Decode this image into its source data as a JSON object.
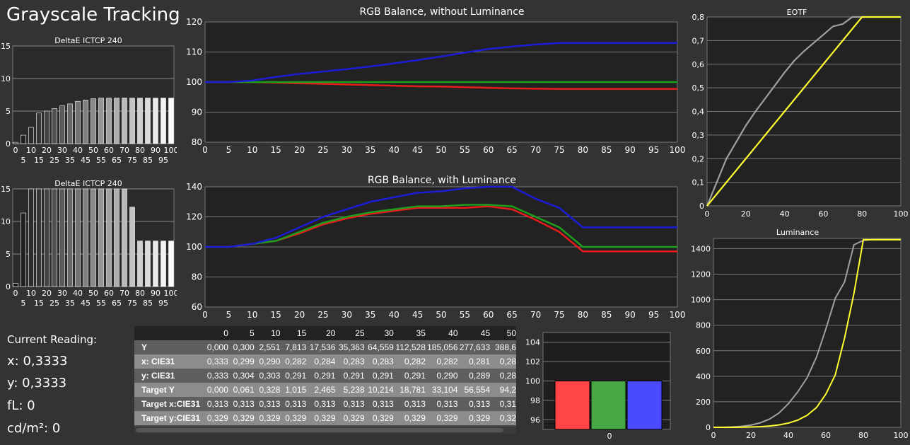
{
  "page": {
    "title": "Grayscale Tracking"
  },
  "current_reading": {
    "heading": "Current Reading:",
    "x": "x: 0,3333",
    "y": "y: 0,3333",
    "fl": "fL: 0",
    "cdm2": "cd/m²: 0"
  },
  "colors": {
    "red": "#e81c1c",
    "green": "#1d9e1d",
    "blue": "#1c1cd6",
    "gray": "#a0a0a0",
    "yellow": "#ffff30"
  },
  "table": {
    "columns": [
      "0",
      "5",
      "10",
      "15",
      "20",
      "25",
      "30",
      "35",
      "40",
      "45",
      "50"
    ],
    "rows": [
      {
        "label": "Y",
        "values": [
          "0,000",
          "0,300",
          "2,551",
          "7,813",
          "17,536",
          "35,363",
          "64,559",
          "112,528",
          "185,056",
          "277,633",
          "388,6"
        ]
      },
      {
        "label": "x: CIE31",
        "values": [
          "0,333",
          "0,299",
          "0,290",
          "0,282",
          "0,284",
          "0,283",
          "0,283",
          "0,282",
          "0,282",
          "0,281",
          "0,28"
        ]
      },
      {
        "label": "y: CIE31",
        "values": [
          "0,333",
          "0,304",
          "0,303",
          "0,291",
          "0,291",
          "0,291",
          "0,291",
          "0,291",
          "0,290",
          "0,289",
          "0,28"
        ]
      },
      {
        "label": "Target Y",
        "values": [
          "0,000",
          "0,061",
          "0,328",
          "1,015",
          "2,465",
          "5,238",
          "10,214",
          "18,781",
          "33,104",
          "56,554",
          "94,2"
        ]
      },
      {
        "label": "Target x:CIE31",
        "values": [
          "0,313",
          "0,313",
          "0,313",
          "0,313",
          "0,313",
          "0,313",
          "0,313",
          "0,313",
          "0,313",
          "0,313",
          "0,31"
        ]
      },
      {
        "label": "Target y:CIE31",
        "values": [
          "0,329",
          "0,329",
          "0,329",
          "0,329",
          "0,329",
          "0,329",
          "0,329",
          "0,329",
          "0,329",
          "0,329",
          "0,32"
        ]
      }
    ]
  },
  "chart_data": [
    {
      "id": "deltae1",
      "type": "bar",
      "title": "DeltaE ICTCP 240",
      "ylim": [
        0,
        15
      ],
      "yticks": [
        0,
        5,
        10,
        15
      ],
      "xticks_top": [
        "0",
        "10",
        "20",
        "30",
        "40",
        "50",
        "60",
        "70",
        "80",
        "90",
        "100"
      ],
      "xticks_bottom": [
        "5",
        "15",
        "25",
        "35",
        "45",
        "55",
        "65",
        "75",
        "85",
        "95"
      ],
      "categories": [
        0,
        5,
        10,
        15,
        20,
        25,
        30,
        35,
        40,
        45,
        50,
        55,
        60,
        65,
        70,
        75,
        80,
        85,
        90,
        95,
        100
      ],
      "values": [
        0.2,
        1.3,
        2.5,
        4.7,
        5.0,
        5.4,
        5.8,
        6.1,
        6.5,
        6.7,
        6.9,
        7.0,
        7.0,
        7.0,
        7.0,
        7.0,
        7.0,
        7.0,
        7.0,
        7.0,
        7.0
      ]
    },
    {
      "id": "deltae2",
      "type": "bar",
      "title": "DeltaE ICTCP 240",
      "ylim": [
        0,
        15
      ],
      "yticks": [
        0,
        5,
        10,
        15
      ],
      "xticks_top": [
        "0",
        "10",
        "20",
        "30",
        "40",
        "50",
        "60",
        "70",
        "80",
        "90",
        "100"
      ],
      "xticks_bottom": [
        "5",
        "15",
        "25",
        "35",
        "45",
        "55",
        "65",
        "75",
        "85",
        "95"
      ],
      "categories": [
        0,
        5,
        10,
        15,
        20,
        25,
        30,
        35,
        40,
        45,
        50,
        55,
        60,
        65,
        70,
        75,
        80,
        85,
        90,
        95,
        100
      ],
      "values": [
        0.5,
        11.3,
        15,
        15,
        15,
        15,
        15,
        15,
        15,
        15,
        15,
        15,
        15,
        15,
        15,
        12.2,
        7.0,
        7.0,
        7.0,
        7.0,
        7.0
      ]
    },
    {
      "id": "rgb1",
      "type": "line",
      "title": "RGB Balance, without Luminance",
      "xlim": [
        0,
        100
      ],
      "ylim": [
        80,
        120
      ],
      "xticks": [
        0,
        5,
        10,
        15,
        20,
        25,
        30,
        35,
        40,
        45,
        50,
        55,
        60,
        65,
        70,
        75,
        80,
        85,
        90,
        95,
        100
      ],
      "yticks": [
        80,
        90,
        100,
        110,
        120
      ],
      "x": [
        0,
        5,
        10,
        15,
        20,
        25,
        30,
        35,
        40,
        45,
        50,
        55,
        60,
        65,
        70,
        75,
        80,
        85,
        90,
        95,
        100
      ],
      "series": [
        {
          "color": "red",
          "values": [
            100,
            100,
            100,
            99.8,
            99.6,
            99.4,
            99.2,
            99.0,
            98.8,
            98.6,
            98.5,
            98.3,
            98.1,
            97.9,
            97.8,
            97.7,
            97.7,
            97.7,
            97.7,
            97.7,
            97.7
          ]
        },
        {
          "color": "green",
          "values": [
            100,
            100,
            100,
            100,
            100,
            100,
            100,
            100,
            100,
            100,
            100,
            100,
            100,
            100,
            100,
            100,
            100,
            100,
            100,
            100,
            100
          ]
        },
        {
          "color": "blue",
          "values": [
            100,
            100,
            100.5,
            101.7,
            102.7,
            103.5,
            104.3,
            105.2,
            106.2,
            107.3,
            108.5,
            109.8,
            111.0,
            111.8,
            112.5,
            113.0,
            113.0,
            113.0,
            113.0,
            113.0,
            113.0
          ]
        }
      ]
    },
    {
      "id": "rgb2",
      "type": "line",
      "title": "RGB Balance, with Luminance",
      "xlim": [
        0,
        100
      ],
      "ylim": [
        60,
        140
      ],
      "xticks": [
        0,
        5,
        10,
        15,
        20,
        25,
        30,
        35,
        40,
        45,
        50,
        55,
        60,
        65,
        70,
        75,
        80,
        85,
        90,
        95,
        100
      ],
      "yticks": [
        60,
        80,
        100,
        120,
        140
      ],
      "x": [
        0,
        5,
        10,
        15,
        20,
        25,
        30,
        35,
        40,
        45,
        50,
        55,
        60,
        65,
        70,
        75,
        80,
        85,
        90,
        95,
        100
      ],
      "series": [
        {
          "color": "red",
          "values": [
            100,
            100,
            102,
            104,
            109,
            115,
            119,
            122,
            124,
            126,
            126,
            126,
            127,
            125,
            118,
            110,
            97,
            97,
            97,
            97,
            97
          ]
        },
        {
          "color": "green",
          "values": [
            100,
            100,
            102,
            104,
            110,
            116,
            120,
            123,
            125,
            127,
            127,
            128,
            128,
            127,
            120,
            113,
            100,
            100,
            100,
            100,
            100
          ]
        },
        {
          "color": "blue",
          "values": [
            100,
            100,
            102,
            106,
            113,
            120,
            125,
            130,
            133,
            136,
            137,
            139,
            140,
            140,
            132,
            126,
            113,
            113,
            113,
            113,
            113
          ]
        }
      ]
    },
    {
      "id": "eotf",
      "type": "line",
      "title": "EOTF",
      "xlim": [
        0,
        100
      ],
      "ylim": [
        0,
        0.8
      ],
      "xticks": [
        0,
        20,
        40,
        60,
        80,
        100
      ],
      "yticks": [
        "0",
        "0,1",
        "0,2",
        "0,3",
        "0,4",
        "0,5",
        "0,6",
        "0,7",
        "0,8"
      ],
      "x": [
        0,
        5,
        10,
        15,
        20,
        25,
        30,
        35,
        40,
        45,
        50,
        55,
        60,
        65,
        70,
        75,
        80,
        85,
        90,
        95,
        100
      ],
      "series": [
        {
          "color": "gray",
          "values": [
            0,
            0.1,
            0.2,
            0.27,
            0.34,
            0.4,
            0.455,
            0.51,
            0.565,
            0.615,
            0.655,
            0.69,
            0.725,
            0.76,
            0.77,
            0.8,
            0.8,
            0.8,
            0.8,
            0.8,
            0.8
          ]
        },
        {
          "color": "yellow",
          "values": [
            0,
            0.05,
            0.1,
            0.15,
            0.2,
            0.25,
            0.3,
            0.35,
            0.4,
            0.45,
            0.5,
            0.55,
            0.6,
            0.65,
            0.7,
            0.75,
            0.8,
            0.8,
            0.8,
            0.8,
            0.8
          ]
        }
      ]
    },
    {
      "id": "luminance",
      "type": "line",
      "title": "Luminance",
      "xlim": [
        0,
        100
      ],
      "ylim": [
        0,
        1480
      ],
      "xticks": [
        0,
        20,
        40,
        60,
        80,
        100
      ],
      "yticks": [
        0,
        200,
        400,
        600,
        800,
        1000,
        1200,
        1400
      ],
      "x": [
        0,
        5,
        10,
        15,
        20,
        25,
        30,
        35,
        40,
        45,
        50,
        55,
        60,
        65,
        70,
        75,
        80,
        85,
        90,
        95,
        100
      ],
      "series": [
        {
          "color": "gray",
          "values": [
            0,
            0.3,
            2.5,
            7.8,
            17.5,
            35.4,
            64.6,
            112.5,
            185.1,
            277.6,
            388.6,
            550,
            770,
            1010,
            1140,
            1430,
            1465,
            1470,
            1470,
            1470,
            1470
          ]
        },
        {
          "color": "yellow",
          "values": [
            0,
            0.06,
            0.33,
            1.0,
            2.5,
            5.2,
            10.2,
            18.8,
            33.1,
            56.6,
            94.2,
            155,
            260,
            410,
            700,
            1050,
            1470,
            1470,
            1470,
            1470,
            1470
          ]
        }
      ]
    },
    {
      "id": "rgb-bars",
      "type": "bar",
      "ylim": [
        95,
        105
      ],
      "yticks": [
        96,
        98,
        100,
        102,
        104
      ],
      "categories": [
        "0"
      ],
      "series": [
        {
          "color": "#ff4545",
          "values": [
            100
          ]
        },
        {
          "color": "#45a845",
          "values": [
            100
          ]
        },
        {
          "color": "#4a4aff",
          "values": [
            100
          ]
        }
      ]
    }
  ]
}
